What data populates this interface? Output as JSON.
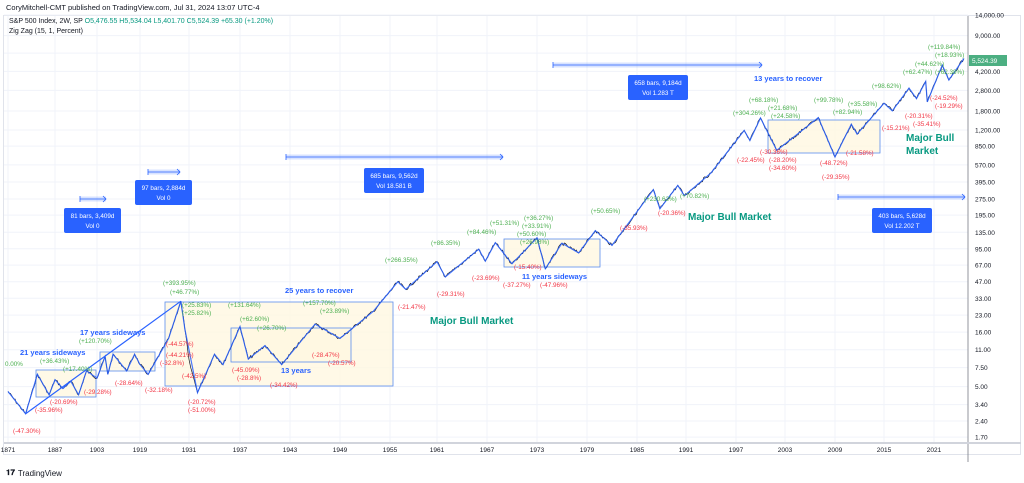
{
  "header": {
    "published": "CoryMitchell-CMT published on TradingView.com, Jul 31, 2024 13:07 UTC-4",
    "symbol": "S&P 500 Index, 2W, SP",
    "open": "O5,476.55",
    "high": "H5,534.04",
    "low": "L5,401.70",
    "close": "C5,524.39",
    "change": "+65.30 (+1.20%)",
    "indicator": "Zig Zag (15, 1, Percent)"
  },
  "brand": {
    "logo": "TV",
    "name": "TradingView"
  },
  "colors": {
    "price": "#131722",
    "zigzag": "#2962ff",
    "up": "#4caf50",
    "down": "#f23645",
    "bull_text": "#089981",
    "box_fill": "#fff8e1",
    "price_label": "#4caf82"
  },
  "chart_data": {
    "type": "line",
    "title": "",
    "y_scale": "log",
    "ylim": [
      1.7,
      14000
    ],
    "grid": true,
    "y_ticks": [
      "14,000.00",
      "9,000.00",
      "6,200.00",
      "4,200.00",
      "2,800.00",
      "1,800.00",
      "1,200.00",
      "850.00",
      "570.00",
      "395.00",
      "275.00",
      "195.00",
      "135.00",
      "95.00",
      "67.00",
      "47.00",
      "33.00",
      "23.00",
      "16.00",
      "11.00",
      "7.50",
      "5.00",
      "3.40",
      "2.40",
      "1.70"
    ],
    "x_ticks": [
      "1871",
      "1887",
      "1903",
      "1919",
      "1931",
      "1937",
      "1943",
      "1949",
      "1955",
      "1961",
      "1967",
      "1973",
      "1979",
      "1985",
      "1991",
      "1997",
      "2003",
      "2009",
      "2015",
      "2021"
    ],
    "last_price": "5,524.39",
    "series": [
      {
        "points": [
          [
            1871,
            4.5
          ],
          [
            1877,
            2.8
          ],
          [
            1881,
            6.5
          ],
          [
            1885,
            4.2
          ],
          [
            1887,
            5.8
          ],
          [
            1890,
            4.8
          ],
          [
            1893,
            5.6
          ],
          [
            1896,
            4.2
          ],
          [
            1899,
            7.0
          ],
          [
            1903,
            6.0
          ],
          [
            1906,
            9.5
          ],
          [
            1907,
            6.5
          ],
          [
            1909,
            10
          ],
          [
            1914,
            7.0
          ],
          [
            1917,
            10
          ],
          [
            1919,
            8.0
          ],
          [
            1921,
            6.5
          ],
          [
            1926,
            14
          ],
          [
            1929,
            31
          ],
          [
            1930,
            17
          ],
          [
            1932,
            4.4
          ],
          [
            1934,
            10
          ],
          [
            1935,
            8
          ],
          [
            1937,
            18
          ],
          [
            1938,
            9
          ],
          [
            1940,
            12
          ],
          [
            1942,
            8
          ],
          [
            1946,
            19
          ],
          [
            1949,
            14
          ],
          [
            1953,
            25
          ],
          [
            1956,
            47
          ],
          [
            1957,
            40
          ],
          [
            1961,
            72
          ],
          [
            1962,
            52
          ],
          [
            1966,
            94
          ],
          [
            1966.8,
            73
          ],
          [
            1968,
            108
          ],
          [
            1970,
            69
          ],
          [
            1973,
            120
          ],
          [
            1974,
            62
          ],
          [
            1976,
            107
          ],
          [
            1978,
            87
          ],
          [
            1980,
            140
          ],
          [
            1982,
            102
          ],
          [
            1987,
            336
          ],
          [
            1987.8,
            223
          ],
          [
            1990,
            368
          ],
          [
            1990.8,
            295
          ],
          [
            1994,
            480
          ],
          [
            1998,
            1190
          ],
          [
            1998.7,
            960
          ],
          [
            2000,
            1550
          ],
          [
            2002,
            776
          ],
          [
            2007,
            1565
          ],
          [
            2009,
            676
          ],
          [
            2011,
            1360
          ],
          [
            2011.7,
            1100
          ],
          [
            2015,
            2130
          ],
          [
            2016,
            1810
          ],
          [
            2018,
            2940
          ],
          [
            2018.9,
            2350
          ],
          [
            2020,
            3380
          ],
          [
            2020.2,
            2190
          ],
          [
            2022,
            4800
          ],
          [
            2022.8,
            3490
          ],
          [
            2024.6,
            5524
          ]
        ]
      }
    ],
    "zigzag_labels_up": [
      "0.00%",
      "(+36.43%)",
      "(+17.40%)",
      "(+120.70%)",
      "(+393.95%)",
      "(+46.77%)",
      "(+25.83%)",
      "(+25.82%)",
      "(+131.64%)",
      "(+62.60%)",
      "(+26.70%)",
      "(+157.70%)",
      "(+23.89%)",
      "(+266.35%)",
      "(+86.35%)",
      "(+84.46%)",
      "(+51.31%)",
      "(+33.91%)",
      "(+36.27%)",
      "(+50.60%)",
      "(+26.98%)",
      "(+50.65%)",
      "(+230.62%)",
      "(+70.82%)",
      "(+304.26%)",
      "(+68.18%)",
      "(+21.68%)",
      "(+24.58%)",
      "(+99.78%)",
      "(+35.58%)",
      "(+82.94%)",
      "(+98.62%)",
      "(+62.47%)",
      "(+44.62%)",
      "(+119.84%)",
      "(+18.93%)",
      "(+62.38%)"
    ],
    "zigzag_labels_down": [
      "(-47.30%)",
      "(-35.96%)",
      "(-20.69%)",
      "(-29.28%)",
      "(-28.64%)",
      "(-32.18%)",
      "(-44.57%)",
      "(-44.21%)",
      "(-32.8%)",
      "(-42.5%)",
      "(-20.72%)",
      "(-51.00%)",
      "(-45.09%)",
      "(-28.8%)",
      "(-34.42%)",
      "(-28.47%)",
      "(-20.57%)",
      "(-21.47%)",
      "(-29.31%)",
      "(-23.69%)",
      "(-37.27%)",
      "(-15.40%)",
      "(-47.96%)",
      "(-35.93%)",
      "(-20.36%)",
      "(-22.45%)",
      "(-30.36%)",
      "(-28.20%)",
      "(-34.60%)",
      "(-48.72%)",
      "(-29.35%)",
      "(-21.58%)",
      "(-15.21%)",
      "(-20.31%)",
      "(-35.41%)",
      "(-24.52%)",
      "(-19.29%)"
    ],
    "annotations": [
      "21 years sideways",
      "17 years sideways",
      "25 years to recover",
      "13 years",
      "11 years sideways",
      "13 years to recover"
    ],
    "bull_labels": [
      "Major Bull Market",
      "Major Bull Market",
      "Major Bull",
      "Market"
    ],
    "measures": [
      {
        "line1": "81 bars, 3,409d",
        "line2": "Vol 0"
      },
      {
        "line1": "97 bars, 2,884d",
        "line2": "Vol 0"
      },
      {
        "line1": "685 bars, 9,562d",
        "line2": "Vol 18.581 B"
      },
      {
        "line1": "658 bars, 9,184d",
        "line2": "Vol 1.283 T"
      },
      {
        "line1": "403 bars, 5,628d",
        "line2": "Vol 12.202 T"
      }
    ]
  }
}
